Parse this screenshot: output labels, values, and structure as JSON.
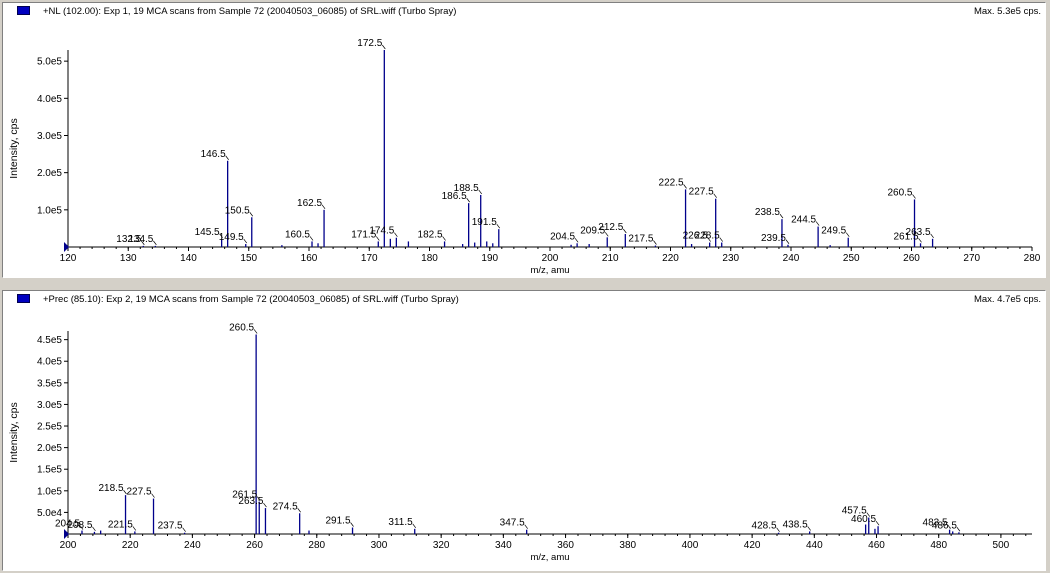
{
  "panels": [
    {
      "title": "+NL (102.00): Exp 1, 19 MCA scans from Sample 72 (20040503_06085) of SRL.wiff (Turbo Spray)",
      "max_label": "Max. 5.3e5 cps."
    },
    {
      "title": "+Prec (85.10): Exp 2, 19 MCA scans from Sample 72 (20040503_06085) of SRL.wiff (Turbo Spray)",
      "max_label": "Max. 4.7e5 cps."
    }
  ],
  "colors": {
    "peak": "#00008b",
    "axis": "#000000",
    "label_line": "#000000"
  },
  "chart_data": [
    {
      "type": "bar",
      "xlabel": "m/z, amu",
      "ylabel": "Intensity, cps",
      "xlim": [
        120,
        280
      ],
      "ylim": [
        0,
        530000
      ],
      "x_ticks": [
        120,
        130,
        140,
        150,
        160,
        170,
        180,
        190,
        200,
        210,
        220,
        230,
        240,
        250,
        260,
        270,
        280
      ],
      "x_tick_labels": [
        "120",
        "130",
        "140",
        "150",
        "160",
        "170",
        "180",
        "190",
        "200",
        "210",
        "220",
        "230",
        "240",
        "250",
        "260",
        "270",
        "280"
      ],
      "y_ticks": [
        100000,
        200000,
        300000,
        400000,
        500000
      ],
      "y_tick_labels": [
        "1.0e5",
        "2.0e5",
        "3.0e5",
        "4.0e5",
        "5.0e5"
      ],
      "peaks": [
        {
          "x": 132.5,
          "y": 3000,
          "label": "132.5"
        },
        {
          "x": 134.5,
          "y": 3000,
          "label": "134.5"
        },
        {
          "x": 145.5,
          "y": 22000,
          "label": "145.5"
        },
        {
          "x": 146.5,
          "y": 232000,
          "label": "146.5"
        },
        {
          "x": 149.5,
          "y": 8000,
          "label": "149.5"
        },
        {
          "x": 150.5,
          "y": 80000,
          "label": "150.5"
        },
        {
          "x": 155.5,
          "y": 5000,
          "label": ""
        },
        {
          "x": 160.5,
          "y": 15000,
          "label": "160.5"
        },
        {
          "x": 161.5,
          "y": 10000,
          "label": ""
        },
        {
          "x": 162.5,
          "y": 100000,
          "label": "162.5"
        },
        {
          "x": 171.5,
          "y": 15000,
          "label": "171.5"
        },
        {
          "x": 172.5,
          "y": 530000,
          "label": "172.5"
        },
        {
          "x": 173.5,
          "y": 22000,
          "label": ""
        },
        {
          "x": 174.5,
          "y": 25000,
          "label": "174.5"
        },
        {
          "x": 176.5,
          "y": 15000,
          "label": ""
        },
        {
          "x": 182.5,
          "y": 15000,
          "label": "182.5"
        },
        {
          "x": 185.5,
          "y": 8000,
          "label": ""
        },
        {
          "x": 186.5,
          "y": 118000,
          "label": "186.5"
        },
        {
          "x": 187.5,
          "y": 12000,
          "label": ""
        },
        {
          "x": 188.5,
          "y": 140000,
          "label": "188.5"
        },
        {
          "x": 189.5,
          "y": 15000,
          "label": ""
        },
        {
          "x": 190.5,
          "y": 10000,
          "label": ""
        },
        {
          "x": 191.5,
          "y": 48000,
          "label": "191.5"
        },
        {
          "x": 203.5,
          "y": 6000,
          "label": ""
        },
        {
          "x": 204.5,
          "y": 10000,
          "label": "204.5"
        },
        {
          "x": 206.5,
          "y": 8000,
          "label": ""
        },
        {
          "x": 209.5,
          "y": 26000,
          "label": "209.5"
        },
        {
          "x": 212.5,
          "y": 35000,
          "label": "212.5"
        },
        {
          "x": 217.5,
          "y": 4000,
          "label": "217.5"
        },
        {
          "x": 222.5,
          "y": 155000,
          "label": "222.5"
        },
        {
          "x": 223.5,
          "y": 8000,
          "label": ""
        },
        {
          "x": 226.5,
          "y": 12000,
          "label": "226.5"
        },
        {
          "x": 227.5,
          "y": 130000,
          "label": "227.5"
        },
        {
          "x": 228.5,
          "y": 12000,
          "label": "228.5"
        },
        {
          "x": 238.5,
          "y": 75000,
          "label": "238.5"
        },
        {
          "x": 239.5,
          "y": 6000,
          "label": "239.5"
        },
        {
          "x": 244.5,
          "y": 55000,
          "label": "244.5"
        },
        {
          "x": 246.5,
          "y": 5000,
          "label": ""
        },
        {
          "x": 249.5,
          "y": 25000,
          "label": "249.5"
        },
        {
          "x": 260.5,
          "y": 128000,
          "label": "260.5"
        },
        {
          "x": 261.5,
          "y": 10000,
          "label": "261.5"
        },
        {
          "x": 263.5,
          "y": 22000,
          "label": "263.5"
        }
      ]
    },
    {
      "type": "bar",
      "xlabel": "m/z, amu",
      "ylabel": "Intensity, cps",
      "xlim": [
        200,
        510
      ],
      "ylim": [
        0,
        470000
      ],
      "x_ticks": [
        200,
        220,
        240,
        260,
        280,
        300,
        320,
        340,
        360,
        380,
        400,
        420,
        440,
        460,
        480,
        500
      ],
      "x_tick_labels": [
        "200",
        "220",
        "240",
        "260",
        "280",
        "300",
        "320",
        "340",
        "360",
        "380",
        "400",
        "420",
        "440",
        "460",
        "480",
        "500"
      ],
      "y_ticks": [
        50000,
        100000,
        150000,
        200000,
        250000,
        300000,
        350000,
        400000,
        450000
      ],
      "y_tick_labels": [
        "5.0e4",
        "1.0e5",
        "1.5e5",
        "2.0e5",
        "2.5e5",
        "3.0e5",
        "3.5e5",
        "4.0e5",
        "4.5e5"
      ],
      "peaks": [
        {
          "x": 204.5,
          "y": 8000,
          "label": "204.5"
        },
        {
          "x": 208.5,
          "y": 5000,
          "label": "208.5"
        },
        {
          "x": 210.5,
          "y": 8000,
          "label": ""
        },
        {
          "x": 218.5,
          "y": 90000,
          "label": "218.5"
        },
        {
          "x": 221.5,
          "y": 6000,
          "label": "221.5"
        },
        {
          "x": 227.5,
          "y": 82000,
          "label": "227.5"
        },
        {
          "x": 237.5,
          "y": 3000,
          "label": "237.5"
        },
        {
          "x": 260.5,
          "y": 462000,
          "label": "260.5"
        },
        {
          "x": 261.5,
          "y": 75000,
          "label": "261.5"
        },
        {
          "x": 263.5,
          "y": 60000,
          "label": "263.5"
        },
        {
          "x": 274.5,
          "y": 48000,
          "label": "274.5"
        },
        {
          "x": 277.5,
          "y": 8000,
          "label": ""
        },
        {
          "x": 291.5,
          "y": 15000,
          "label": "291.5"
        },
        {
          "x": 311.5,
          "y": 12000,
          "label": "311.5"
        },
        {
          "x": 347.5,
          "y": 10000,
          "label": "347.5"
        },
        {
          "x": 428.5,
          "y": 3000,
          "label": "428.5"
        },
        {
          "x": 438.5,
          "y": 6000,
          "label": "438.5"
        },
        {
          "x": 456.5,
          "y": 22000,
          "label": ""
        },
        {
          "x": 457.5,
          "y": 38000,
          "label": "457.5"
        },
        {
          "x": 459.5,
          "y": 12000,
          "label": ""
        },
        {
          "x": 460.5,
          "y": 18000,
          "label": "460.5"
        },
        {
          "x": 483.5,
          "y": 10000,
          "label": "483.5"
        },
        {
          "x": 484.5,
          "y": 6000,
          "label": ""
        },
        {
          "x": 486.5,
          "y": 4000,
          "label": "486.5"
        }
      ]
    }
  ]
}
